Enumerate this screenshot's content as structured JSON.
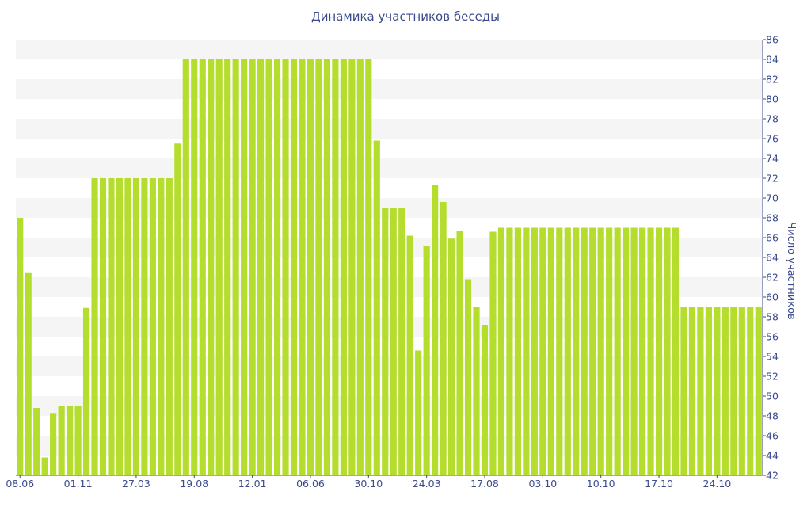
{
  "chart_data": {
    "type": "bar",
    "title": "Динамика участников беседы",
    "xlabel": "",
    "ylabel": "Число участников",
    "ylim": [
      42,
      86
    ],
    "yticks": [
      42,
      44,
      46,
      48,
      50,
      52,
      54,
      56,
      58,
      60,
      62,
      64,
      66,
      68,
      70,
      72,
      74,
      76,
      78,
      80,
      82,
      84,
      86
    ],
    "y_axis_side": "right",
    "grid": "alternating horizontal bands",
    "bar_color": "#b5dd2e",
    "x_tick_labels": [
      {
        "label": "08.06",
        "index": 0
      },
      {
        "label": "01.11",
        "index": 7
      },
      {
        "label": "27.03",
        "index": 14
      },
      {
        "label": "19.08",
        "index": 21
      },
      {
        "label": "12.01",
        "index": 28
      },
      {
        "label": "06.06",
        "index": 35
      },
      {
        "label": "30.10",
        "index": 42
      },
      {
        "label": "24.03",
        "index": 49
      },
      {
        "label": "17.08",
        "index": 56
      },
      {
        "label": "03.10",
        "index": 63
      },
      {
        "label": "10.10",
        "index": 70
      },
      {
        "label": "17.10",
        "index": 77
      },
      {
        "label": "24.10",
        "index": 84
      }
    ],
    "values": [
      68,
      62.5,
      48.8,
      43.8,
      48.3,
      49,
      49,
      49,
      58.9,
      72,
      72,
      72,
      72,
      72,
      72,
      72,
      72,
      72,
      72,
      75.5,
      84,
      84,
      84,
      84,
      84,
      84,
      84,
      84,
      84,
      84,
      84,
      84,
      84,
      84,
      84,
      84,
      84,
      84,
      84,
      84,
      84,
      84,
      84,
      75.8,
      69,
      69,
      69,
      66.2,
      54.6,
      65.2,
      71.3,
      69.6,
      65.9,
      66.7,
      61.8,
      59,
      57.2,
      66.6,
      67,
      67,
      67,
      67,
      67,
      67,
      67,
      67,
      67,
      67,
      67,
      67,
      67,
      67,
      67,
      67,
      67,
      67,
      67,
      67,
      67,
      67,
      59,
      59,
      59,
      59,
      59,
      59,
      59,
      59,
      59,
      59
    ]
  }
}
